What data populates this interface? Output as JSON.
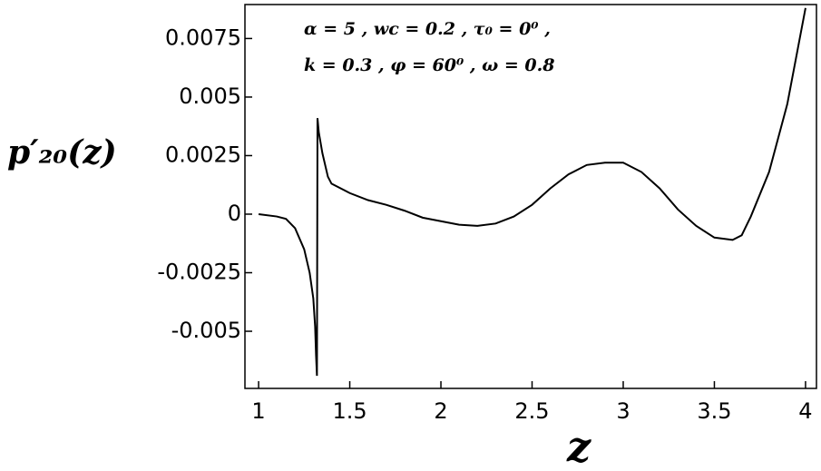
{
  "chart_data": {
    "type": "line",
    "x_label": "z",
    "y_label": "p′₂₀(z)",
    "annotations": [
      "α = 5 , wc = 0.2 , τ₀ = 0⁰ ,",
      "k = 0.3 , φ = 60⁰ , ω = 0.8"
    ],
    "x": [
      1.0,
      1.1,
      1.15,
      1.2,
      1.25,
      1.28,
      1.3,
      1.31,
      1.315,
      1.32,
      1.323,
      1.33,
      1.35,
      1.38,
      1.4,
      1.5,
      1.6,
      1.7,
      1.8,
      1.9,
      2.0,
      2.1,
      2.2,
      2.3,
      2.4,
      2.5,
      2.6,
      2.7,
      2.8,
      2.9,
      3.0,
      3.1,
      3.2,
      3.3,
      3.4,
      3.5,
      3.6,
      3.65,
      3.7,
      3.8,
      3.9,
      4.0
    ],
    "series": [
      {
        "color": "#000000",
        "values": [
          0,
          -0.0001,
          -0.0002,
          -0.0006,
          -0.0015,
          -0.0025,
          -0.0036,
          -0.0048,
          -0.006,
          -0.0069,
          0.0041,
          0.0035,
          0.0026,
          0.0016,
          0.0013,
          0.0009,
          0.0006,
          0.0004,
          0.00015,
          -0.00015,
          -0.0003,
          -0.00045,
          -0.0005,
          -0.0004,
          -0.0001,
          0.0004,
          0.0011,
          0.0017,
          0.0021,
          0.0022,
          0.0022,
          0.0018,
          0.0011,
          0.0002,
          -0.0005,
          -0.001,
          -0.0011,
          -0.0009,
          -0.0001,
          0.0018,
          0.0047,
          0.0088
        ]
      }
    ],
    "xlim": [
      0.925,
      4.06
    ],
    "ylim": [
      -0.00744,
      0.00895
    ],
    "xticks": [
      1,
      1.5,
      2,
      2.5,
      3,
      3.5,
      4
    ],
    "yticks": [
      -0.005,
      -0.0025,
      0,
      0.0025,
      0.005,
      0.0075
    ]
  }
}
